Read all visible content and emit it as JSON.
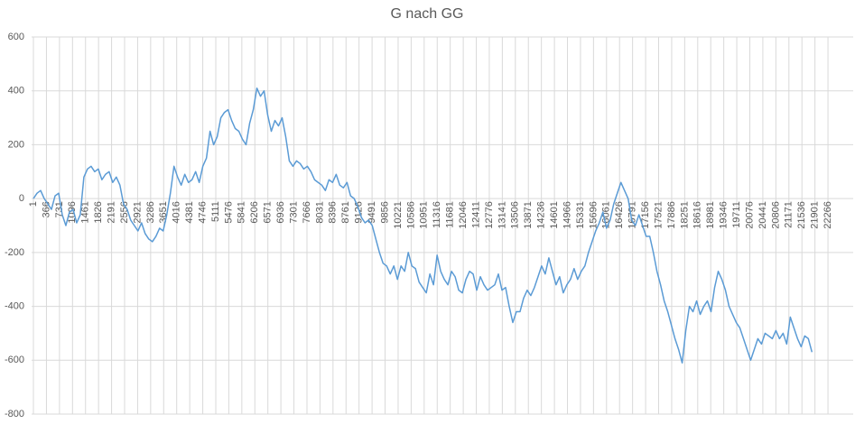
{
  "chart_data": {
    "type": "line",
    "title": "G nach GG",
    "x": [
      1,
      102,
      203,
      304,
      405,
      506,
      607,
      708,
      809,
      910,
      1011,
      1112,
      1213,
      1314,
      1415,
      1516,
      1617,
      1718,
      1819,
      1920,
      2021,
      2122,
      2223,
      2324,
      2425,
      2526,
      2627,
      2728,
      2829,
      2930,
      3031,
      3132,
      3233,
      3334,
      3435,
      3536,
      3637,
      3738,
      3839,
      3940,
      4041,
      4142,
      4243,
      4344,
      4445,
      4546,
      4647,
      4748,
      4849,
      4950,
      5051,
      5152,
      5253,
      5354,
      5455,
      5556,
      5657,
      5758,
      5859,
      5960,
      6061,
      6162,
      6263,
      6364,
      6465,
      6566,
      6667,
      6768,
      6869,
      6970,
      7071,
      7172,
      7273,
      7374,
      7475,
      7576,
      7677,
      7778,
      7879,
      7980,
      8081,
      8182,
      8283,
      8384,
      8485,
      8586,
      8687,
      8788,
      8889,
      8990,
      9091,
      9192,
      9293,
      9394,
      9495,
      9596,
      9697,
      9798,
      9899,
      10000,
      10101,
      10202,
      10303,
      10404,
      10505,
      10606,
      10707,
      10808,
      10909,
      11010,
      11111,
      11212,
      11313,
      11414,
      11515,
      11616,
      11717,
      11818,
      11919,
      12020,
      12121,
      12222,
      12323,
      12424,
      12525,
      12626,
      12727,
      12828,
      12929,
      13030,
      13131,
      13232,
      13333,
      13434,
      13535,
      13636,
      13737,
      13838,
      13939,
      14040,
      14141,
      14242,
      14343,
      14444,
      14545,
      14646,
      14747,
      14848,
      14949,
      15050,
      15151,
      15252,
      15353,
      15454,
      15555,
      15656,
      15757,
      15858,
      15959,
      16060,
      16161,
      16262,
      16363,
      16464,
      16565,
      16666,
      16767,
      16868,
      16969,
      17070,
      17171,
      17272,
      17373,
      17474,
      17575,
      17676,
      17777,
      17878,
      17979,
      18080,
      18181,
      18282,
      18383,
      18484,
      18585,
      18686,
      18787,
      18888,
      18989,
      19090,
      19191,
      19292,
      19393,
      19494,
      19595,
      19696,
      19797,
      19898,
      19999,
      20100,
      20201,
      20302,
      20403,
      20504,
      20605,
      20706,
      20807,
      20908,
      21009,
      21110,
      21211,
      21312,
      21413,
      21514,
      21615,
      21716,
      21817
    ],
    "series": [
      {
        "color": "#5b9bd5",
        "values": [
          0,
          20,
          30,
          0,
          -20,
          -40,
          10,
          20,
          -60,
          -100,
          -50,
          -40,
          -90,
          -60,
          80,
          110,
          120,
          100,
          110,
          70,
          90,
          100,
          60,
          80,
          50,
          -20,
          -40,
          -80,
          -100,
          -120,
          -90,
          -130,
          -150,
          -160,
          -140,
          -110,
          -120,
          -60,
          20,
          120,
          80,
          50,
          90,
          60,
          70,
          100,
          60,
          120,
          150,
          250,
          200,
          230,
          300,
          320,
          330,
          290,
          260,
          250,
          220,
          200,
          280,
          330,
          410,
          380,
          400,
          310,
          250,
          290,
          270,
          300,
          230,
          140,
          120,
          140,
          130,
          110,
          120,
          100,
          70,
          60,
          50,
          30,
          70,
          60,
          90,
          50,
          40,
          60,
          10,
          0,
          -30,
          -70,
          -90,
          -80,
          -100,
          -150,
          -200,
          -240,
          -250,
          -280,
          -250,
          -300,
          -250,
          -270,
          -200,
          -250,
          -260,
          -310,
          -330,
          -350,
          -280,
          -320,
          -210,
          -270,
          -300,
          -320,
          -270,
          -290,
          -340,
          -350,
          -300,
          -270,
          -280,
          -340,
          -290,
          -320,
          -340,
          -330,
          -320,
          -280,
          -340,
          -330,
          -400,
          -460,
          -420,
          -420,
          -370,
          -340,
          -360,
          -330,
          -290,
          -250,
          -280,
          -220,
          -270,
          -320,
          -290,
          -350,
          -320,
          -300,
          -260,
          -300,
          -270,
          -250,
          -200,
          -160,
          -120,
          -90,
          -50,
          -110,
          -80,
          -20,
          20,
          60,
          30,
          0,
          -80,
          -100,
          -60,
          -100,
          -140,
          -140,
          -200,
          -270,
          -320,
          -380,
          -420,
          -470,
          -520,
          -560,
          -610,
          -490,
          -400,
          -420,
          -380,
          -430,
          -400,
          -380,
          -420,
          -330,
          -270,
          -300,
          -340,
          -400,
          -430,
          -460,
          -480,
          -520,
          -560,
          -600,
          -560,
          -520,
          -540,
          -500,
          -510,
          -520,
          -490,
          -520,
          -500,
          -540,
          -440,
          -480,
          -520,
          -550,
          -510,
          -520,
          -570
        ]
      }
    ],
    "xlim": [
      -50,
      22973
    ],
    "xticks": [
      1,
      366,
      731,
      1096,
      1461,
      1826,
      2191,
      2556,
      2921,
      3286,
      3651,
      4016,
      4381,
      4746,
      5111,
      5476,
      5841,
      6206,
      6571,
      6936,
      7301,
      7666,
      8031,
      8396,
      8761,
      9126,
      9491,
      9856,
      10221,
      10586,
      10951,
      11316,
      11681,
      12046,
      12411,
      12776,
      13141,
      13506,
      13871,
      14236,
      14601,
      14966,
      15331,
      15696,
      16061,
      16426,
      16791,
      17156,
      17521,
      17886,
      18251,
      18616,
      18981,
      19346,
      19711,
      20076,
      20441,
      20806,
      21171,
      21536,
      21901,
      22266
    ],
    "ylim": [
      -800,
      600
    ],
    "yticks": [
      -800,
      -600,
      -400,
      -200,
      0,
      200,
      400,
      600
    ],
    "grid": true
  }
}
